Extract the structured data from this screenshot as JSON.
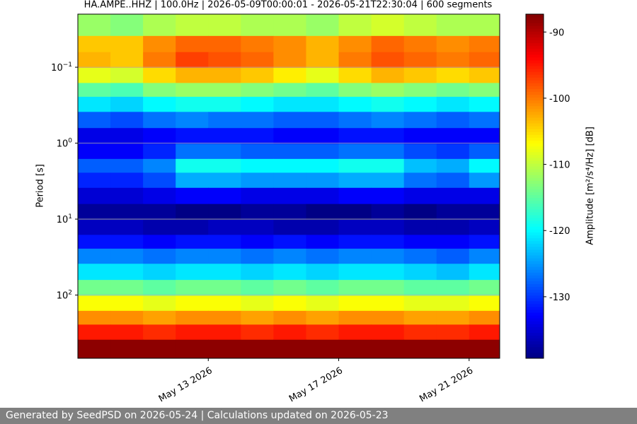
{
  "chart_data": {
    "type": "heatmap",
    "title": "HA.AMPE..HHZ | 100.0Hz | 2026-05-09T00:00:01 - 2026-05-21T22:30:04 | 600 segments",
    "ylabel": "Period [s]",
    "colorbar_label": "Amplitude [m²/s⁴/Hz] [dB]",
    "x": [
      "2026-05-09",
      "2026-05-10",
      "2026-05-11",
      "2026-05-12",
      "2026-05-13",
      "2026-05-14",
      "2026-05-15",
      "2026-05-16",
      "2026-05-17",
      "2026-05-18",
      "2026-05-19",
      "2026-05-20",
      "2026-05-21"
    ],
    "xlim": [
      "2026-05-09T00:00:01",
      "2026-05-21T22:30:04"
    ],
    "xticks": [
      {
        "value": "2026-05-13",
        "label": "May 13 2026"
      },
      {
        "value": "2026-05-17",
        "label": "May 17 2026"
      },
      {
        "value": "2026-05-21",
        "label": "May 21 2026"
      }
    ],
    "periods": [
      0.03,
      0.05,
      0.08,
      0.13,
      0.2,
      0.3,
      0.5,
      0.8,
      1.3,
      2,
      3,
      5,
      8,
      13,
      20,
      30,
      50,
      80,
      130,
      200,
      300,
      500
    ],
    "ylim": [
      0.02,
      680
    ],
    "log_y": true,
    "inverted_y": true,
    "yticks": [
      {
        "value": 0.1,
        "label": "10",
        "exponent": "−1"
      },
      {
        "value": 1,
        "label": "10",
        "exponent": "0"
      },
      {
        "value": 10,
        "label": "10",
        "exponent": "1"
      },
      {
        "value": 100,
        "label": "10",
        "exponent": "2"
      }
    ],
    "grid": true,
    "colormap": "jet",
    "clim": [
      -139.3,
      -87.3
    ],
    "cticks": [
      -90,
      -100,
      -110,
      -120,
      -130
    ],
    "z": [
      [
        -112,
        -113,
        -111,
        -110,
        -110,
        -111,
        -111,
        -112,
        -110,
        -109,
        -110,
        -111,
        -111
      ],
      [
        -104,
        -104,
        -101,
        -99,
        -99,
        -100,
        -101,
        -103,
        -101,
        -99,
        -100,
        -101,
        -100
      ],
      [
        -103,
        -104,
        -100,
        -97,
        -98,
        -99,
        -101,
        -103,
        -100,
        -98,
        -99,
        -100,
        -99
      ],
      [
        -108,
        -109,
        -105,
        -103,
        -103,
        -104,
        -106,
        -108,
        -105,
        -103,
        -104,
        -105,
        -104
      ],
      [
        -115,
        -116,
        -113,
        -112,
        -112,
        -113,
        -114,
        -115,
        -113,
        -112,
        -113,
        -114,
        -113
      ],
      [
        -121,
        -122,
        -120,
        -119,
        -119,
        -120,
        -121,
        -121,
        -120,
        -119,
        -120,
        -121,
        -120
      ],
      [
        -128,
        -129,
        -127,
        -126,
        -127,
        -127,
        -128,
        -128,
        -127,
        -126,
        -127,
        -128,
        -127
      ],
      [
        -134,
        -134,
        -133,
        -132,
        -132,
        -132,
        -133,
        -133,
        -132,
        -132,
        -133,
        -133,
        -133
      ],
      [
        -133,
        -133,
        -131,
        -127,
        -127,
        -128,
        -128,
        -128,
        -127,
        -127,
        -129,
        -130,
        -128
      ],
      [
        -128,
        -128,
        -126,
        -119,
        -119,
        -120,
        -120,
        -120,
        -119,
        -119,
        -123,
        -124,
        -120
      ],
      [
        -131,
        -131,
        -129,
        -124,
        -124,
        -125,
        -125,
        -125,
        -124,
        -124,
        -127,
        -128,
        -125
      ],
      [
        -135,
        -135,
        -134,
        -133,
        -133,
        -134,
        -134,
        -134,
        -133,
        -133,
        -134,
        -134,
        -134
      ],
      [
        -138,
        -138,
        -138,
        -139,
        -139,
        -138,
        -138,
        -139,
        -139,
        -138,
        -139,
        -138,
        -138
      ],
      [
        -136,
        -136,
        -137,
        -137,
        -136,
        -136,
        -137,
        -137,
        -136,
        -136,
        -137,
        -137,
        -136
      ],
      [
        -132,
        -132,
        -133,
        -132,
        -132,
        -133,
        -132,
        -133,
        -132,
        -132,
        -133,
        -133,
        -132
      ],
      [
        -126,
        -126,
        -127,
        -126,
        -126,
        -127,
        -126,
        -127,
        -126,
        -126,
        -127,
        -128,
        -126
      ],
      [
        -121,
        -121,
        -122,
        -121,
        -121,
        -122,
        -121,
        -122,
        -121,
        -121,
        -122,
        -123,
        -121
      ],
      [
        -114,
        -114,
        -115,
        -114,
        -114,
        -115,
        -114,
        -115,
        -114,
        -114,
        -115,
        -115,
        -114
      ],
      [
        -107,
        -107,
        -108,
        -107,
        -107,
        -108,
        -107,
        -108,
        -107,
        -107,
        -108,
        -108,
        -107
      ],
      [
        -101,
        -101,
        -102,
        -101,
        -101,
        -102,
        -101,
        -102,
        -101,
        -101,
        -102,
        -102,
        -101
      ],
      [
        -95,
        -95,
        -96,
        -95,
        -95,
        -96,
        -95,
        -96,
        -95,
        -95,
        -96,
        -96,
        -95
      ],
      [
        -88,
        -88,
        -88,
        -88,
        -88,
        -88,
        -88,
        -88,
        -88,
        -88,
        -88,
        -88,
        -88
      ]
    ]
  },
  "footer": {
    "text": "Generated by SeedPSD on 2026-05-24 | Calculations updated on 2026-05-23"
  }
}
